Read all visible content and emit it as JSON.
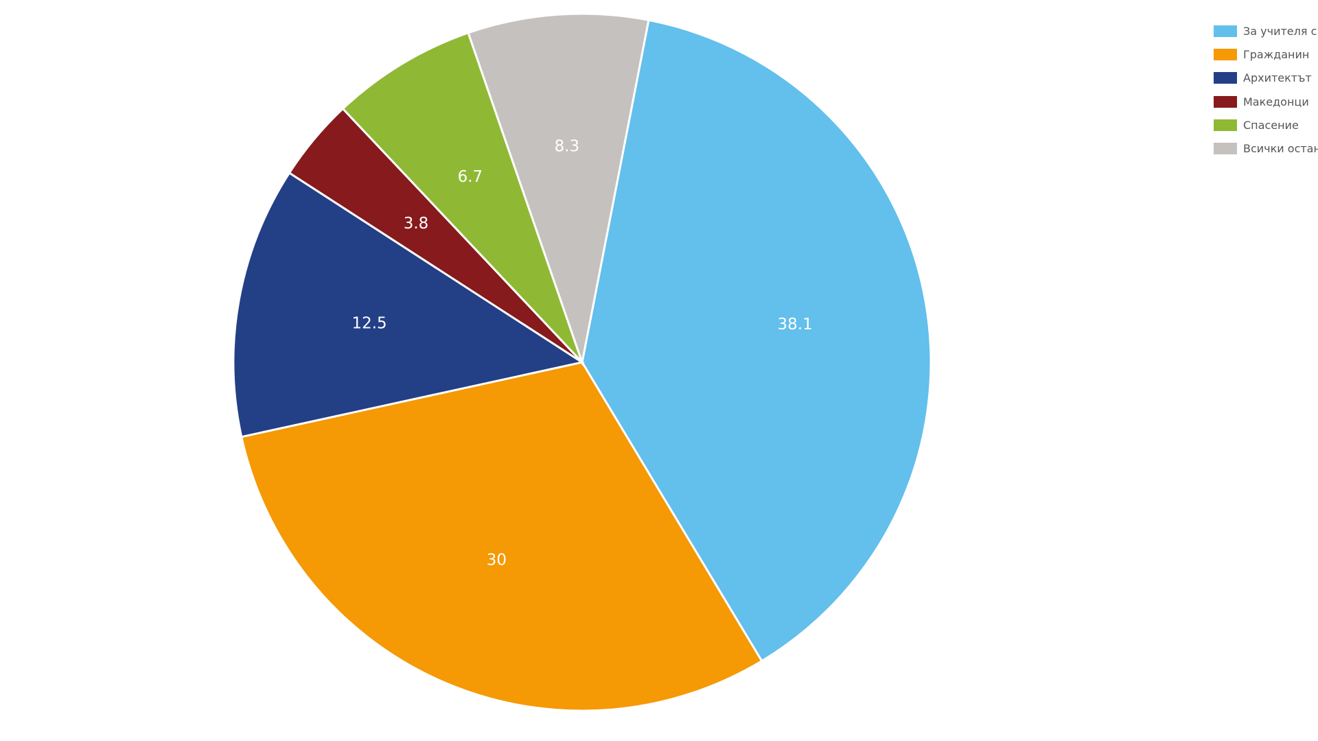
{
  "chart_data": {
    "type": "pie",
    "title": "",
    "categories": [
      "За учителя с любов",
      "Гражданин",
      "Архитектът",
      "Македонци",
      "Спасение",
      "Всички останали"
    ],
    "values": [
      38.1,
      30,
      12.5,
      3.8,
      6.7,
      8.3
    ],
    "value_labels": [
      "38.1",
      "30",
      "12.5",
      "3.8",
      "6.7",
      "8.3"
    ],
    "colors": [
      "#63bfeb",
      "#f59905",
      "#233f86",
      "#861a1c",
      "#8fb935",
      "#c5c1bf"
    ],
    "start_angle_deg": 11,
    "direction": "clockwise",
    "legend_position": "top-right"
  }
}
